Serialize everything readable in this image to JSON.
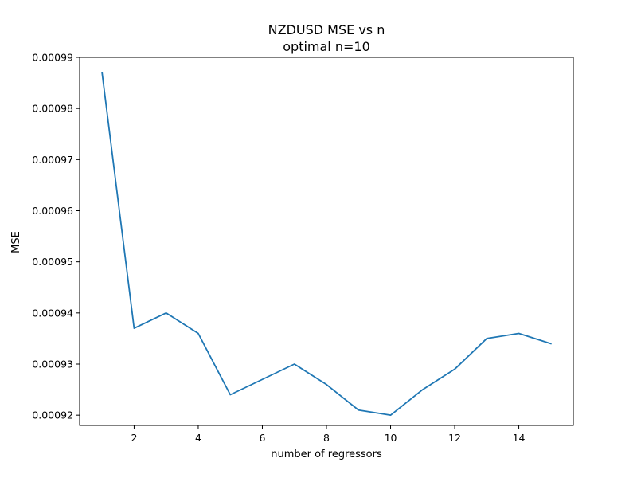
{
  "chart_data": {
    "type": "line",
    "title": "NZDUSD MSE vs n",
    "subtitle": "optimal n=10",
    "xlabel": "number of regressors",
    "ylabel": "MSE",
    "xlim": [
      0.3,
      15.7
    ],
    "ylim": [
      0.000918,
      0.00099
    ],
    "x_ticks": [
      2,
      4,
      6,
      8,
      10,
      12,
      14
    ],
    "x_tick_labels": [
      "2",
      "4",
      "6",
      "8",
      "10",
      "12",
      "14"
    ],
    "y_ticks": [
      0.00092,
      0.00093,
      0.00094,
      0.00095,
      0.00096,
      0.00097,
      0.00098,
      0.00099
    ],
    "y_tick_labels": [
      "0.00092",
      "0.00093",
      "0.00094",
      "0.00095",
      "0.00096",
      "0.00097",
      "0.00098",
      "0.00099"
    ],
    "grid": false,
    "line_color": "#1f77b4",
    "series": [
      {
        "x": [
          1,
          2,
          3,
          4,
          5,
          6,
          7,
          8,
          9,
          10,
          11,
          12,
          13,
          14,
          15
        ],
        "values": [
          0.000987,
          0.000937,
          0.00094,
          0.000936,
          0.000924,
          0.000927,
          0.00093,
          0.000926,
          0.000921,
          0.00092,
          0.000925,
          0.000929,
          0.000935,
          0.000936,
          0.000934
        ]
      }
    ]
  }
}
